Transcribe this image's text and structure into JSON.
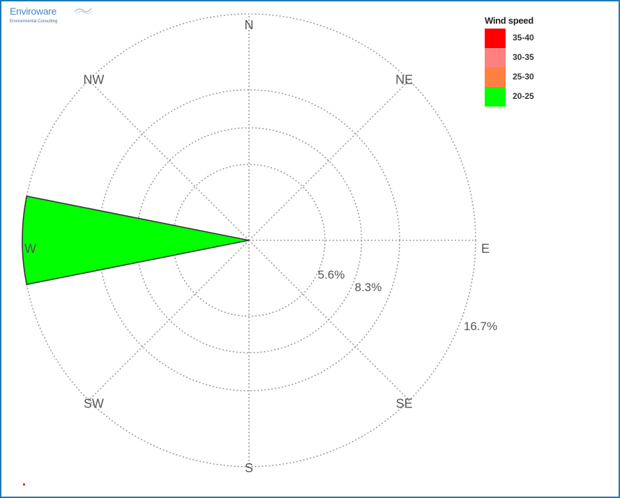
{
  "logo": {
    "name": "Enviroware",
    "subtitle": "Environmental Consulting"
  },
  "legend": {
    "title": "Wind speed",
    "items": [
      {
        "label": "35-40",
        "color": "#ff0000"
      },
      {
        "label": "30-35",
        "color": "#ff8080"
      },
      {
        "label": "25-30",
        "color": "#ff8040"
      },
      {
        "label": "20-25",
        "color": "#00ff00"
      }
    ]
  },
  "chart_data": {
    "type": "wind-rose",
    "directions": [
      "N",
      "NE",
      "E",
      "SE",
      "S",
      "SW",
      "W",
      "NW"
    ],
    "ring_labels": [
      "5.6%",
      "8.3%",
      "16.7%"
    ],
    "rings_percent": [
      5.6,
      8.3,
      11.1,
      16.7
    ],
    "series": [
      {
        "name": "20-25",
        "color": "#00ff00",
        "values": [
          {
            "direction": "W",
            "frequency_percent": 16.7
          }
        ]
      }
    ],
    "grid": true,
    "legend_position": "top-right"
  }
}
